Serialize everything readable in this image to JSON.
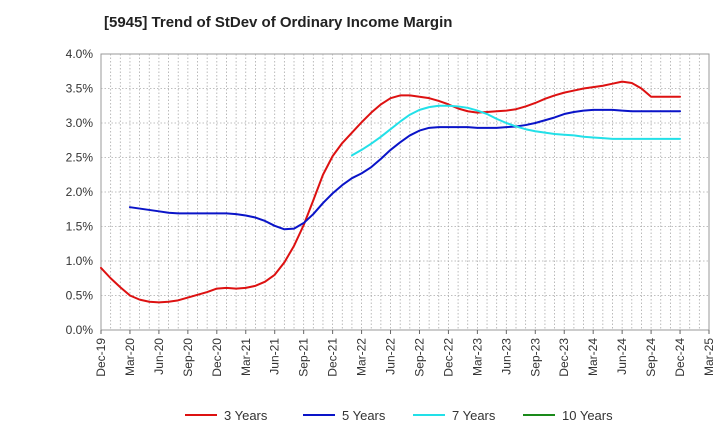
{
  "chart_data": {
    "type": "line",
    "title": "[5945]  Trend of StDev of Ordinary Income Margin",
    "xlabel": "",
    "ylabel": "",
    "ylim": [
      0,
      4.0
    ],
    "y_ticks": [
      "0.0%",
      "0.5%",
      "1.0%",
      "1.5%",
      "2.0%",
      "2.5%",
      "3.0%",
      "3.5%",
      "4.0%"
    ],
    "x_ticks": [
      "Dec-19",
      "Mar-20",
      "Jun-20",
      "Sep-20",
      "Dec-20",
      "Mar-21",
      "Jun-21",
      "Sep-21",
      "Dec-21",
      "Mar-22",
      "Jun-22",
      "Sep-22",
      "Dec-22",
      "Mar-23",
      "Jun-23",
      "Sep-23",
      "Dec-23",
      "Mar-24",
      "Jun-24",
      "Sep-24",
      "Dec-24",
      "Mar-25"
    ],
    "grid": true,
    "legend_position": "bottom",
    "series": [
      {
        "name": "3 Years",
        "color": "#dd1111",
        "x": [
          "Dec-19",
          "Jan-20",
          "Feb-20",
          "Mar-20",
          "Apr-20",
          "May-20",
          "Jun-20",
          "Jul-20",
          "Aug-20",
          "Sep-20",
          "Oct-20",
          "Nov-20",
          "Dec-20",
          "Jan-21",
          "Feb-21",
          "Mar-21",
          "Apr-21",
          "May-21",
          "Jun-21",
          "Jul-21",
          "Aug-21",
          "Sep-21",
          "Oct-21",
          "Nov-21",
          "Dec-21",
          "Jan-22",
          "Feb-22",
          "Mar-22",
          "Apr-22",
          "May-22",
          "Jun-22",
          "Jul-22",
          "Aug-22",
          "Sep-22",
          "Oct-22",
          "Nov-22",
          "Dec-22",
          "Jan-23",
          "Feb-23",
          "Mar-23",
          "Apr-23",
          "May-23",
          "Jun-23",
          "Jul-23",
          "Aug-23",
          "Sep-23",
          "Oct-23",
          "Nov-23",
          "Dec-23",
          "Jan-24",
          "Feb-24",
          "Mar-24",
          "Apr-24",
          "May-24",
          "Jun-24",
          "Jul-24",
          "Aug-24",
          "Sep-24",
          "Oct-24",
          "Nov-24",
          "Dec-24"
        ],
        "values": [
          0.9,
          0.75,
          0.62,
          0.5,
          0.44,
          0.41,
          0.4,
          0.41,
          0.43,
          0.47,
          0.51,
          0.55,
          0.6,
          0.61,
          0.6,
          0.61,
          0.64,
          0.7,
          0.8,
          0.98,
          1.22,
          1.52,
          1.88,
          2.25,
          2.52,
          2.71,
          2.86,
          3.01,
          3.15,
          3.27,
          3.36,
          3.4,
          3.4,
          3.38,
          3.36,
          3.32,
          3.27,
          3.21,
          3.17,
          3.15,
          3.16,
          3.17,
          3.18,
          3.2,
          3.24,
          3.29,
          3.35,
          3.4,
          3.44,
          3.47,
          3.5,
          3.52,
          3.54,
          3.57,
          3.6,
          3.58,
          3.5,
          3.38,
          3.38,
          3.38,
          3.38
        ]
      },
      {
        "name": "5 Years",
        "color": "#0a14c8",
        "x": [
          "Mar-20",
          "Apr-20",
          "May-20",
          "Jun-20",
          "Jul-20",
          "Aug-20",
          "Sep-20",
          "Oct-20",
          "Nov-20",
          "Dec-20",
          "Jan-21",
          "Feb-21",
          "Mar-21",
          "Apr-21",
          "May-21",
          "Jun-21",
          "Jul-21",
          "Aug-21",
          "Sep-21",
          "Oct-21",
          "Nov-21",
          "Dec-21",
          "Jan-22",
          "Feb-22",
          "Mar-22",
          "Apr-22",
          "May-22",
          "Jun-22",
          "Jul-22",
          "Aug-22",
          "Sep-22",
          "Oct-22",
          "Nov-22",
          "Dec-22",
          "Jan-23",
          "Feb-23",
          "Mar-23",
          "Apr-23",
          "May-23",
          "Jun-23",
          "Jul-23",
          "Aug-23",
          "Sep-23",
          "Oct-23",
          "Nov-23",
          "Dec-23",
          "Jan-24",
          "Feb-24",
          "Mar-24",
          "Apr-24",
          "May-24",
          "Jun-24",
          "Jul-24",
          "Aug-24",
          "Sep-24",
          "Oct-24",
          "Nov-24",
          "Dec-24"
        ],
        "values": [
          1.78,
          1.76,
          1.74,
          1.72,
          1.7,
          1.69,
          1.69,
          1.69,
          1.69,
          1.69,
          1.69,
          1.68,
          1.66,
          1.63,
          1.58,
          1.51,
          1.46,
          1.47,
          1.55,
          1.68,
          1.84,
          1.98,
          2.1,
          2.2,
          2.27,
          2.36,
          2.48,
          2.61,
          2.72,
          2.82,
          2.89,
          2.93,
          2.94,
          2.94,
          2.94,
          2.94,
          2.93,
          2.93,
          2.93,
          2.94,
          2.95,
          2.97,
          3.0,
          3.04,
          3.08,
          3.13,
          3.16,
          3.18,
          3.19,
          3.19,
          3.19,
          3.18,
          3.17,
          3.17,
          3.17,
          3.17,
          3.17,
          3.17
        ]
      },
      {
        "name": "7 Years",
        "color": "#22e0e8",
        "x": [
          "Feb-22",
          "Mar-22",
          "Apr-22",
          "May-22",
          "Jun-22",
          "Jul-22",
          "Aug-22",
          "Sep-22",
          "Oct-22",
          "Nov-22",
          "Dec-22",
          "Jan-23",
          "Feb-23",
          "Mar-23",
          "Apr-23",
          "May-23",
          "Jun-23",
          "Jul-23",
          "Aug-23",
          "Sep-23",
          "Oct-23",
          "Nov-23",
          "Dec-23",
          "Jan-24",
          "Feb-24",
          "Mar-24",
          "Apr-24",
          "May-24",
          "Jun-24",
          "Jul-24",
          "Aug-24",
          "Sep-24",
          "Oct-24",
          "Nov-24",
          "Dec-24"
        ],
        "values": [
          2.53,
          2.61,
          2.7,
          2.8,
          2.91,
          3.02,
          3.12,
          3.19,
          3.23,
          3.25,
          3.25,
          3.24,
          3.22,
          3.18,
          3.13,
          3.06,
          3.0,
          2.95,
          2.91,
          2.88,
          2.86,
          2.84,
          2.83,
          2.82,
          2.8,
          2.79,
          2.78,
          2.77,
          2.77,
          2.77,
          2.77,
          2.77,
          2.77,
          2.77,
          2.77
        ]
      },
      {
        "name": "10 Years",
        "color": "#1a8a1a",
        "x": [],
        "values": []
      }
    ]
  }
}
